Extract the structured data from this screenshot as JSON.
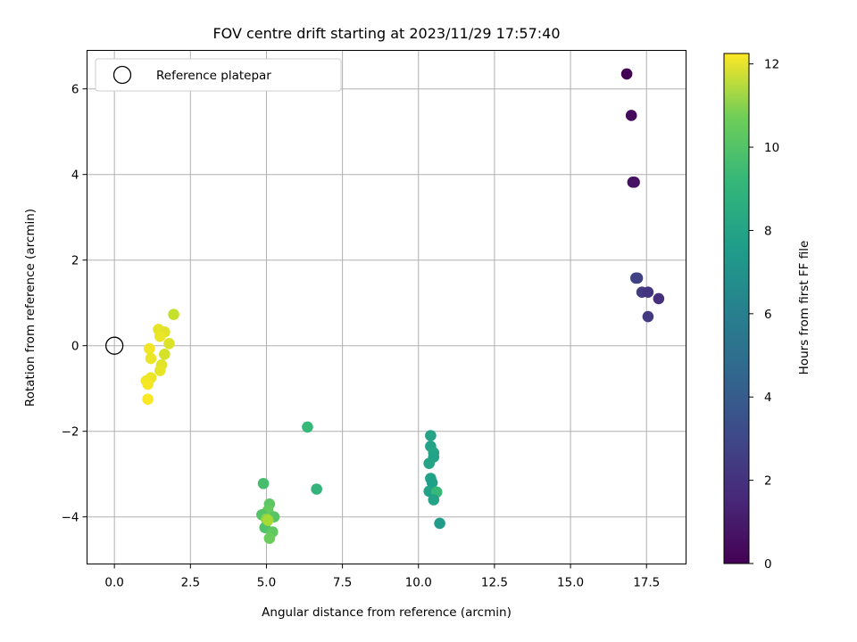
{
  "chart_data": {
    "type": "scatter",
    "title": "FOV centre drift starting at 2023/11/29 17:57:40",
    "xlabel": "Angular distance from reference (arcmin)",
    "ylabel": "Rotation from reference (arcmin)",
    "xlim": [
      -0.9,
      18.8
    ],
    "ylim": [
      -5.1,
      6.9
    ],
    "x_ticks": [
      0.0,
      2.5,
      5.0,
      7.5,
      10.0,
      12.5,
      15.0,
      17.5
    ],
    "x_tick_labels": [
      "0.0",
      "2.5",
      "5.0",
      "7.5",
      "10.0",
      "12.5",
      "15.0",
      "17.5"
    ],
    "y_ticks": [
      -4,
      -2,
      0,
      2,
      4,
      6
    ],
    "y_tick_labels": [
      "−4",
      "−2",
      "0",
      "2",
      "4",
      "6"
    ],
    "grid": true,
    "legend": {
      "position": "top-left",
      "entries": [
        {
          "label": "Reference platepar",
          "marker": "open-circle",
          "x": 0.0,
          "y": 0.0
        }
      ]
    },
    "colorbar": {
      "label": "Hours from first FF file",
      "colormap": "viridis",
      "range": [
        0,
        12.25
      ],
      "ticks": [
        0,
        2,
        4,
        6,
        8,
        10,
        12
      ],
      "tick_labels": [
        "0",
        "2",
        "4",
        "6",
        "8",
        "10",
        "12"
      ]
    },
    "points": [
      {
        "x": 16.85,
        "y": 6.35,
        "c": 0.0
      },
      {
        "x": 17.0,
        "y": 5.38,
        "c": 0.3
      },
      {
        "x": 17.05,
        "y": 3.82,
        "c": 0.5
      },
      {
        "x": 17.1,
        "y": 3.82,
        "c": 0.6
      },
      {
        "x": 17.15,
        "y": 1.58,
        "c": 2.5
      },
      {
        "x": 17.2,
        "y": 1.58,
        "c": 2.4
      },
      {
        "x": 17.35,
        "y": 1.25,
        "c": 2.2
      },
      {
        "x": 17.55,
        "y": 1.25,
        "c": 1.9
      },
      {
        "x": 17.9,
        "y": 1.1,
        "c": 1.7
      },
      {
        "x": 17.55,
        "y": 0.68,
        "c": 2.1
      },
      {
        "x": 6.35,
        "y": -1.9,
        "c": 8.2
      },
      {
        "x": 6.65,
        "y": -3.35,
        "c": 8.0
      },
      {
        "x": 10.4,
        "y": -2.1,
        "c": 7.1
      },
      {
        "x": 10.4,
        "y": -2.35,
        "c": 7.0
      },
      {
        "x": 10.5,
        "y": -2.5,
        "c": 7.2
      },
      {
        "x": 10.5,
        "y": -2.6,
        "c": 7.0
      },
      {
        "x": 10.35,
        "y": -2.75,
        "c": 7.1
      },
      {
        "x": 10.4,
        "y": -3.1,
        "c": 7.0
      },
      {
        "x": 10.45,
        "y": -3.2,
        "c": 6.9
      },
      {
        "x": 10.35,
        "y": -3.4,
        "c": 7.0
      },
      {
        "x": 10.6,
        "y": -3.42,
        "c": 8.2
      },
      {
        "x": 10.5,
        "y": -3.6,
        "c": 7.1
      },
      {
        "x": 10.7,
        "y": -4.15,
        "c": 6.7
      },
      {
        "x": 4.9,
        "y": -3.22,
        "c": 8.6
      },
      {
        "x": 5.1,
        "y": -3.7,
        "c": 9.1
      },
      {
        "x": 5.05,
        "y": -3.85,
        "c": 9.3
      },
      {
        "x": 4.85,
        "y": -3.95,
        "c": 8.9
      },
      {
        "x": 5.25,
        "y": -4.0,
        "c": 9.0
      },
      {
        "x": 5.0,
        "y": -4.05,
        "c": 10.0
      },
      {
        "x": 4.95,
        "y": -4.25,
        "c": 8.8
      },
      {
        "x": 5.2,
        "y": -4.35,
        "c": 9.2
      },
      {
        "x": 5.1,
        "y": -4.5,
        "c": 9.4
      },
      {
        "x": 5.05,
        "y": -4.08,
        "c": 10.6
      },
      {
        "x": 1.95,
        "y": 0.73,
        "c": 11.2
      },
      {
        "x": 1.45,
        "y": 0.38,
        "c": 11.8
      },
      {
        "x": 1.65,
        "y": 0.32,
        "c": 11.7
      },
      {
        "x": 1.5,
        "y": 0.22,
        "c": 11.9
      },
      {
        "x": 1.8,
        "y": 0.05,
        "c": 11.6
      },
      {
        "x": 1.15,
        "y": -0.07,
        "c": 12.0
      },
      {
        "x": 1.65,
        "y": -0.2,
        "c": 11.5
      },
      {
        "x": 1.2,
        "y": -0.3,
        "c": 11.9
      },
      {
        "x": 1.55,
        "y": -0.45,
        "c": 11.7
      },
      {
        "x": 1.5,
        "y": -0.58,
        "c": 11.8
      },
      {
        "x": 1.2,
        "y": -0.75,
        "c": 11.9
      },
      {
        "x": 1.05,
        "y": -0.82,
        "c": 12.0
      },
      {
        "x": 1.1,
        "y": -0.9,
        "c": 12.1
      },
      {
        "x": 1.1,
        "y": -1.25,
        "c": 12.2
      }
    ]
  }
}
